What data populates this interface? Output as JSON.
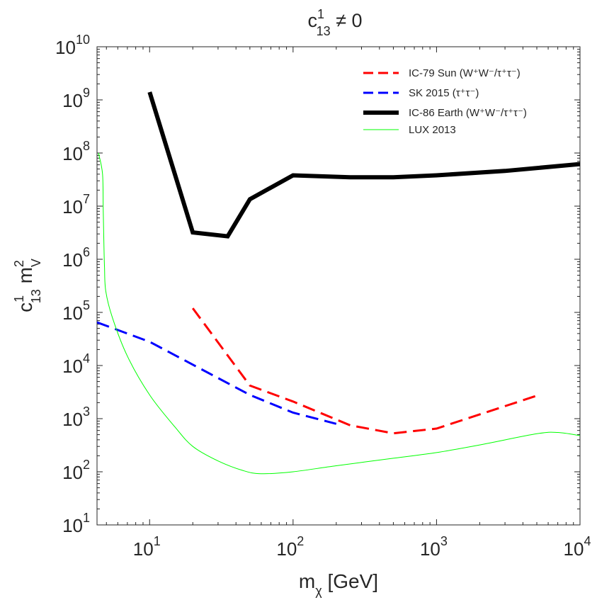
{
  "chart_data": {
    "type": "line",
    "title": {
      "base": "c",
      "sup": "1",
      "sub": "13",
      "rest": " ≠ 0"
    },
    "xlabel": {
      "base": "m",
      "sub": "χ",
      "rest": " [GeV]"
    },
    "ylabel": {
      "a": "c",
      "a_sup": "1",
      "a_sub": "13",
      "b": " m",
      "b_sup": "2",
      "b_sub": "V"
    },
    "x_scale": "log",
    "y_scale": "log",
    "xlim": [
      4.3,
      10000
    ],
    "ylim": [
      10,
      10000000000
    ],
    "x_ticks": [
      {
        "base": "10",
        "exp": "1",
        "value": 10
      },
      {
        "base": "10",
        "exp": "2",
        "value": 100
      },
      {
        "base": "10",
        "exp": "3",
        "value": 1000
      },
      {
        "base": "10",
        "exp": "4",
        "value": 10000
      }
    ],
    "y_ticks": [
      {
        "base": "10",
        "exp": "1",
        "value": 10
      },
      {
        "base": "10",
        "exp": "2",
        "value": 100
      },
      {
        "base": "10",
        "exp": "3",
        "value": 1000
      },
      {
        "base": "10",
        "exp": "4",
        "value": 10000
      },
      {
        "base": "10",
        "exp": "5",
        "value": 100000
      },
      {
        "base": "10",
        "exp": "6",
        "value": 1000000
      },
      {
        "base": "10",
        "exp": "7",
        "value": 10000000
      },
      {
        "base": "10",
        "exp": "8",
        "value": 100000000
      },
      {
        "base": "10",
        "exp": "9",
        "value": 1000000000
      },
      {
        "base": "10",
        "exp": "10",
        "value": 10000000000
      }
    ],
    "grid": false,
    "legend_position": "top-right",
    "series": [
      {
        "name": "IC-79 Sun (W⁺W⁻/τ⁺τ⁻)",
        "color": "#ff0000",
        "style": "dashed",
        "width": 3,
        "x": [
          20,
          50,
          100,
          250,
          500,
          1000,
          5000
        ],
        "y": [
          120000,
          4200,
          2100,
          750,
          530,
          650,
          2700
        ]
      },
      {
        "name": "SK 2015 (τ⁺τ⁻)",
        "color": "#0000ff",
        "style": "dashed",
        "width": 3,
        "x": [
          4.3,
          10,
          50,
          100,
          200
        ],
        "y": [
          65000,
          28000,
          2800,
          1300,
          800
        ]
      },
      {
        "name": "IC-86 Earth (W⁺W⁻/τ⁺τ⁻)",
        "color": "#000000",
        "style": "solid",
        "width": 6,
        "x": [
          10,
          20,
          35,
          50,
          100,
          250,
          500,
          1000,
          3000,
          10000
        ],
        "y": [
          1400000000,
          3200000,
          2700000,
          13500000,
          38000000,
          35000000,
          35000000,
          38000000,
          46000000,
          62000000
        ]
      },
      {
        "name": "LUX 2013",
        "color": "#00ff00",
        "style": "solid",
        "width": 1,
        "x": [
          4.4,
          4.7,
          4.75,
          4.8,
          4.85,
          4.95,
          5.5,
          7,
          10,
          15,
          20,
          30,
          45,
          60,
          100,
          200,
          500,
          1000,
          2000,
          5000,
          7000,
          10000
        ],
        "y": [
          100000000,
          40000000,
          8000000,
          2000000,
          700000,
          250000,
          80000,
          15000,
          2800,
          700,
          300,
          160,
          105,
          92,
          100,
          130,
          180,
          230,
          320,
          520,
          550,
          480
        ]
      }
    ]
  }
}
